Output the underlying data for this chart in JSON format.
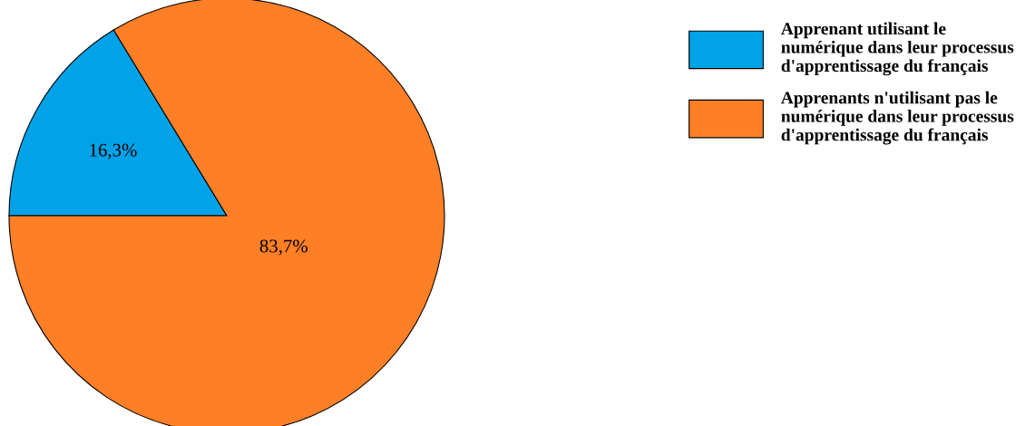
{
  "chart_data": {
    "type": "pie",
    "categories": [
      "Apprenant utilisant le\nnumérique dans leur processus\nd'apprentissage du français",
      "Apprenants n'utilisant pas le\nnumérique dans leur processus\nd'apprentissage du français"
    ],
    "values": [
      16.3,
      83.7
    ],
    "colors": [
      "#00a2e8",
      "#ff7f27"
    ],
    "value_labels": [
      "16,3%",
      "83,7%"
    ],
    "legend": "top right"
  }
}
